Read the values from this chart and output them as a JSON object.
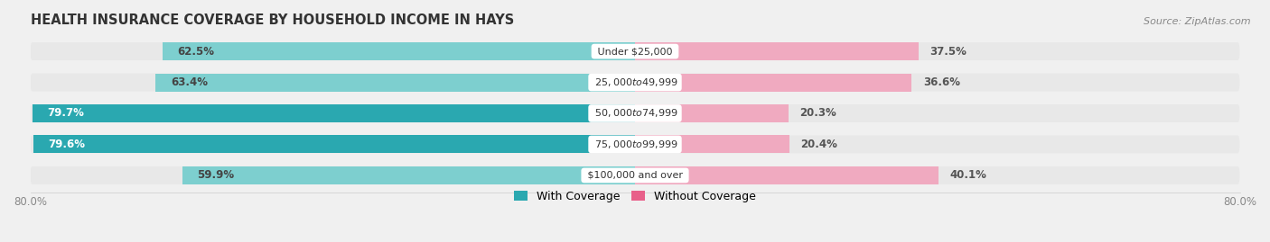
{
  "title": "HEALTH INSURANCE COVERAGE BY HOUSEHOLD INCOME IN HAYS",
  "source": "Source: ZipAtlas.com",
  "categories": [
    "Under $25,000",
    "$25,000 to $49,999",
    "$50,000 to $74,999",
    "$75,000 to $99,999",
    "$100,000 and over"
  ],
  "with_coverage": [
    62.5,
    63.4,
    79.7,
    79.6,
    59.9
  ],
  "without_coverage": [
    37.5,
    36.6,
    20.3,
    20.4,
    40.1
  ],
  "color_coverage_dark": "#2aa8b0",
  "color_coverage_light": "#7dcfcf",
  "color_no_coverage_dark": "#e8608a",
  "color_no_coverage_light": "#f0aac0",
  "bar_height": 0.58,
  "xlim": [
    -80,
    80
  ],
  "left_tick_label": "80.0%",
  "right_tick_label": "80.0%",
  "title_fontsize": 10.5,
  "source_fontsize": 8,
  "label_fontsize": 8.5,
  "category_fontsize": 8,
  "legend_fontsize": 9,
  "background_color": "#f0f0f0",
  "bar_background": "#e8e8e8",
  "dark_threshold": 70
}
